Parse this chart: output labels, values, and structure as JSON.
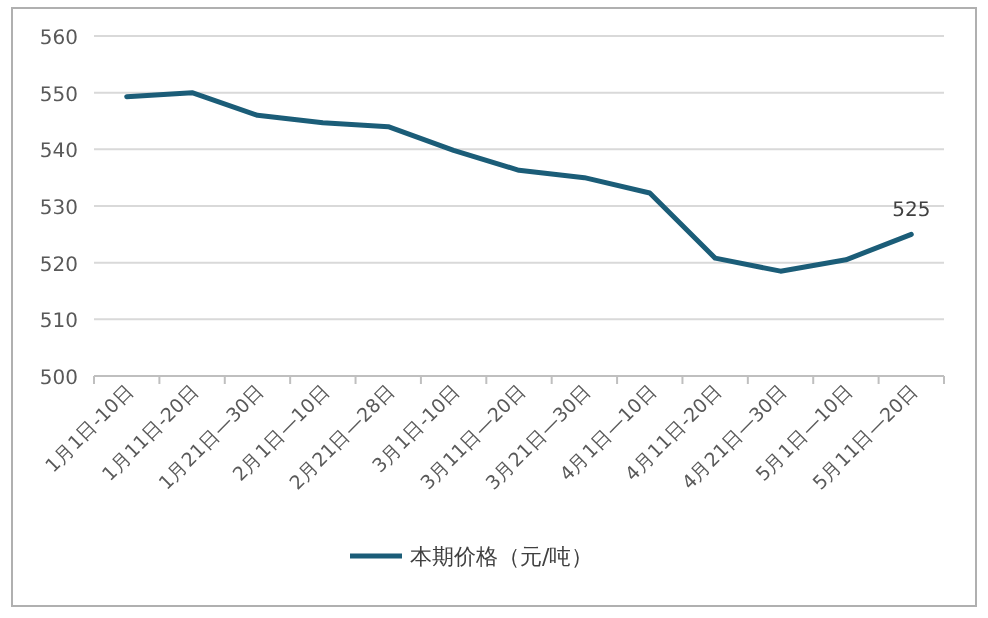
{
  "chart_data": {
    "type": "line",
    "categories": [
      "1月1日-10日",
      "1月11日-20日",
      "1月21日—30日",
      "2月1日—10日",
      "2月21日—28日",
      "3月1日-10日",
      "3月11日—20日",
      "3月21日—30日",
      "4月1日—10日",
      "4月11日-20日",
      "4月21日—30日",
      "5月1日—10日",
      "5月11日—20日"
    ],
    "series": [
      {
        "name": "本期价格（元/吨）",
        "color": "#1b5d78",
        "values": [
          549.3,
          550,
          546,
          544.7,
          544,
          539.8,
          536.3,
          535,
          532.3,
          520.8,
          518.5,
          520.5,
          525
        ],
        "value_labels": [
          null,
          null,
          null,
          null,
          null,
          null,
          null,
          null,
          null,
          null,
          null,
          null,
          "525"
        ]
      }
    ],
    "ylim": [
      500,
      560
    ],
    "yticks": [
      500,
      510,
      520,
      530,
      540,
      550,
      560
    ],
    "grid": "y",
    "legend": "bottom",
    "marker": "none",
    "line_style": "solid"
  }
}
